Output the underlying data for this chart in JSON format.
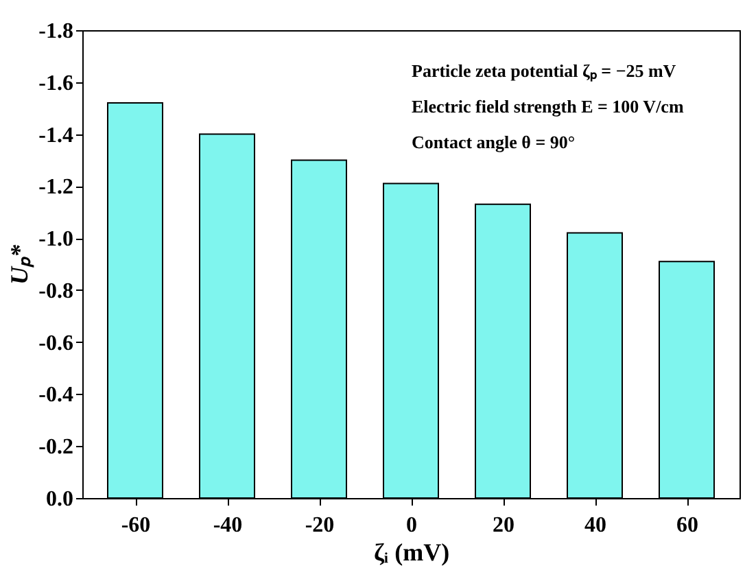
{
  "chart_data": {
    "type": "bar",
    "categories": [
      "-60",
      "-40",
      "-20",
      "0",
      "20",
      "40",
      "60"
    ],
    "values": [
      -1.52,
      -1.4,
      -1.3,
      -1.21,
      -1.13,
      -1.02,
      -0.91
    ],
    "color": "#7ff5ee",
    "xlabel": "ζᵢ (mV)",
    "ylabel": "Uₚ*",
    "ylim": [
      0,
      -1.8
    ],
    "yticks": [
      {
        "value": 0,
        "label": "0.0"
      },
      {
        "value": -0.2,
        "label": "-0.2"
      },
      {
        "value": -0.4,
        "label": "-0.4"
      },
      {
        "value": -0.6,
        "label": "-0.6"
      },
      {
        "value": -0.8,
        "label": "-0.8"
      },
      {
        "value": -1.0,
        "label": "-1.0"
      },
      {
        "value": -1.2,
        "label": "-1.2"
      },
      {
        "value": -1.4,
        "label": "-1.4"
      },
      {
        "value": -1.6,
        "label": "-1.6"
      },
      {
        "value": -1.8,
        "label": "-1.8"
      }
    ],
    "annotations": [
      "Particle zeta potential ζₚ = −25 mV",
      "Electric field strength E = 100 V/cm",
      "Contact angle θ = 90°"
    ],
    "grid": false
  }
}
